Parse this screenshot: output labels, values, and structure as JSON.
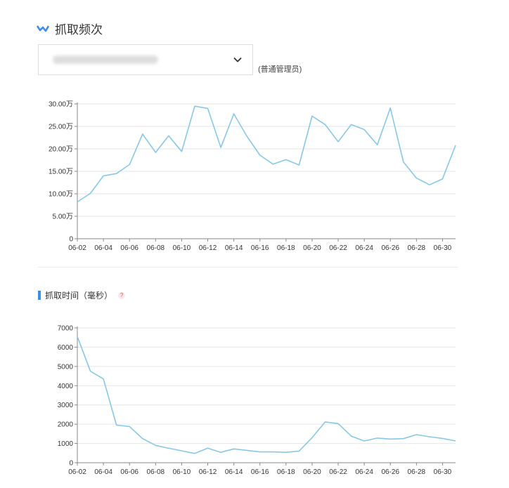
{
  "header": {
    "title": "抓取频次"
  },
  "site_select": {
    "role_note": "(普通管理员)"
  },
  "section2": {
    "title": "抓取时间（毫秒）",
    "help_glyph": "?"
  },
  "chart_data": [
    {
      "type": "line",
      "title": "",
      "xlabel": "",
      "ylabel": "",
      "color": "#87c8e8",
      "x": [
        "06-02",
        "06-03",
        "06-04",
        "06-05",
        "06-06",
        "06-07",
        "06-08",
        "06-09",
        "06-10",
        "06-11",
        "06-12",
        "06-13",
        "06-14",
        "06-15",
        "06-16",
        "06-17",
        "06-18",
        "06-19",
        "06-20",
        "06-21",
        "06-22",
        "06-23",
        "06-24",
        "06-25",
        "06-26",
        "06-27",
        "06-28",
        "06-29",
        "06-30",
        "07-01"
      ],
      "values": [
        8.2,
        10.1,
        14.0,
        14.5,
        16.5,
        23.3,
        19.2,
        22.9,
        19.4,
        29.5,
        29.0,
        20.3,
        27.8,
        22.8,
        18.6,
        16.6,
        17.6,
        16.4,
        27.3,
        25.4,
        21.6,
        25.4,
        24.3,
        20.9,
        29.1,
        17.1,
        13.5,
        12.0,
        13.3,
        20.8
      ],
      "ylim": [
        0,
        30
      ],
      "y_ticks": [
        0,
        5,
        10,
        15,
        20,
        25,
        30
      ],
      "y_tick_labels": [
        "0",
        "5.00万",
        "10.00万",
        "15.00万",
        "20.00万",
        "25.00万",
        "30.00万"
      ],
      "x_tick_labels": [
        "06-02",
        "06-04",
        "06-06",
        "06-08",
        "06-10",
        "06-12",
        "06-14",
        "06-16",
        "06-18",
        "06-20",
        "06-22",
        "06-24",
        "06-26",
        "06-28",
        "06-30"
      ],
      "grid": true
    },
    {
      "type": "line",
      "title": "",
      "xlabel": "",
      "ylabel": "",
      "color": "#87c8e8",
      "x": [
        "06-02",
        "06-03",
        "06-04",
        "06-05",
        "06-06",
        "06-07",
        "06-08",
        "06-09",
        "06-10",
        "06-11",
        "06-12",
        "06-13",
        "06-14",
        "06-15",
        "06-16",
        "06-17",
        "06-18",
        "06-19",
        "06-20",
        "06-21",
        "06-22",
        "06-23",
        "06-24",
        "06-25",
        "06-26",
        "06-27",
        "06-28",
        "06-29",
        "06-30",
        "07-01"
      ],
      "values": [
        6550,
        4750,
        4350,
        1950,
        1880,
        1250,
        900,
        750,
        620,
        480,
        760,
        540,
        720,
        640,
        560,
        560,
        540,
        600,
        1300,
        2120,
        2030,
        1380,
        1130,
        1280,
        1230,
        1250,
        1460,
        1350,
        1260,
        1130
      ],
      "ylim": [
        0,
        7000
      ],
      "y_ticks": [
        0,
        1000,
        2000,
        3000,
        4000,
        5000,
        6000,
        7000
      ],
      "y_tick_labels": [
        "0",
        "1000",
        "2000",
        "3000",
        "4000",
        "5000",
        "6000",
        "7000"
      ],
      "x_tick_labels": [
        "06-02",
        "06-04",
        "06-06",
        "06-08",
        "06-10",
        "06-12",
        "06-14",
        "06-16",
        "06-18",
        "06-20",
        "06-22",
        "06-24",
        "06-26",
        "06-28",
        "06-30"
      ],
      "grid": true
    }
  ]
}
